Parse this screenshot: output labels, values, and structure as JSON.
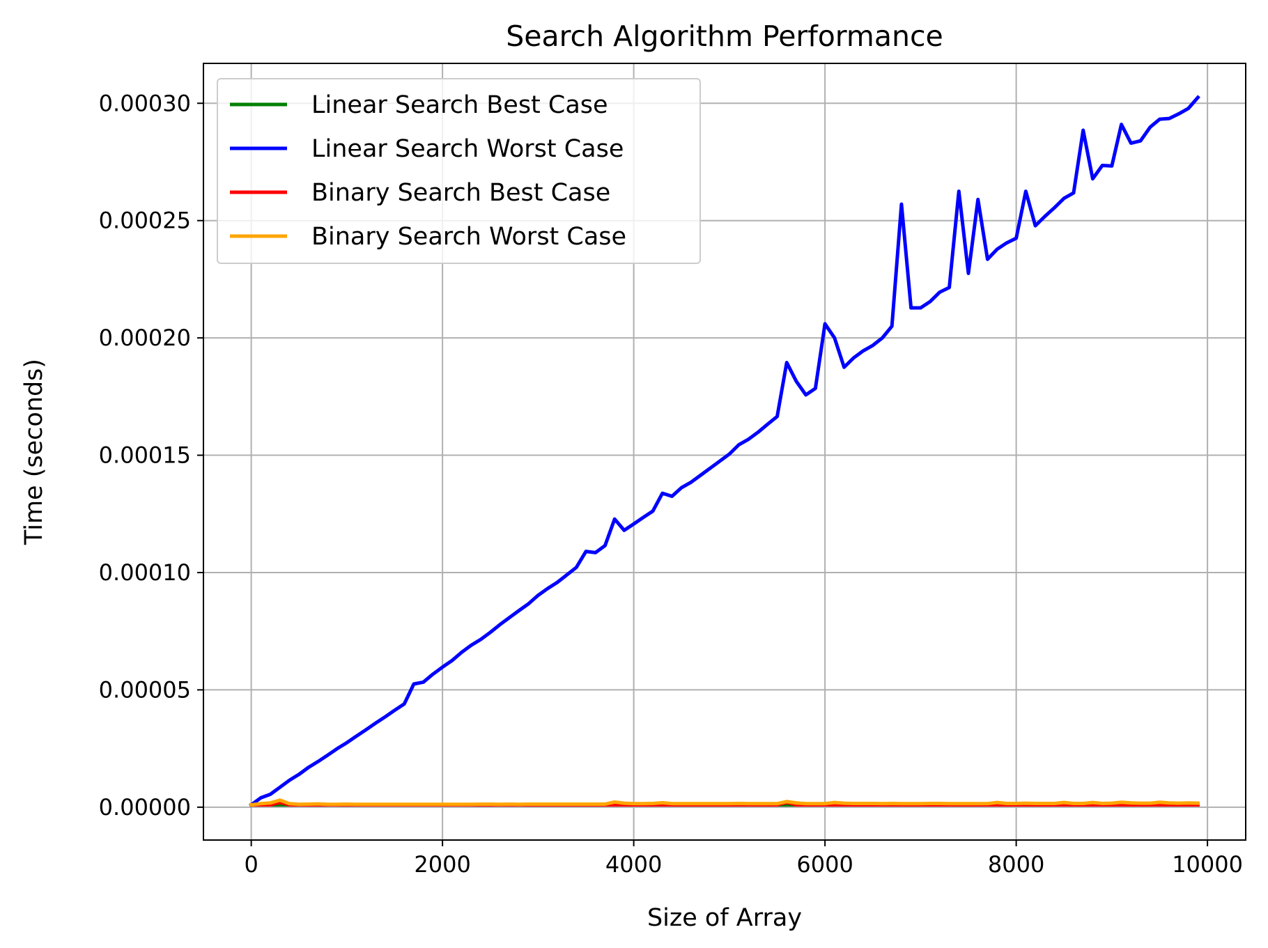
{
  "chart_data": {
    "type": "line",
    "title": "Search Algorithm Performance",
    "xlabel": "Size of Array",
    "ylabel": "Time (seconds)",
    "xlim": [
      -500,
      10400
    ],
    "ylim": [
      -1.4e-05,
      0.000317
    ],
    "xticks": [
      0,
      2000,
      4000,
      6000,
      8000,
      10000
    ],
    "xtick_labels": [
      "0",
      "2000",
      "4000",
      "6000",
      "8000",
      "10000"
    ],
    "yticks": [
      0,
      5e-05,
      0.0001,
      0.00015,
      0.0002,
      0.00025,
      0.0003
    ],
    "ytick_labels": [
      "0.00000",
      "0.00005",
      "0.00010",
      "0.00015",
      "0.00020",
      "0.00025",
      "0.00030"
    ],
    "grid": true,
    "legend_position": "upper-left",
    "x": [
      0,
      100,
      200,
      300,
      400,
      500,
      600,
      700,
      800,
      900,
      1000,
      1100,
      1200,
      1300,
      1400,
      1500,
      1600,
      1700,
      1800,
      1900,
      2000,
      2100,
      2200,
      2300,
      2400,
      2500,
      2600,
      2700,
      2800,
      2900,
      3000,
      3100,
      3200,
      3300,
      3400,
      3500,
      3600,
      3700,
      3800,
      3900,
      4000,
      4100,
      4200,
      4300,
      4400,
      4500,
      4600,
      4700,
      4800,
      4900,
      5000,
      5100,
      5200,
      5300,
      5400,
      5500,
      5600,
      5700,
      5800,
      5900,
      6000,
      6100,
      6200,
      6300,
      6400,
      6500,
      6600,
      6700,
      6800,
      6900,
      7000,
      7100,
      7200,
      7300,
      7400,
      7500,
      7600,
      7700,
      7800,
      7900,
      8000,
      8100,
      8200,
      8300,
      8400,
      8500,
      8600,
      8700,
      8800,
      8900,
      9000,
      9100,
      9200,
      9300,
      9400,
      9500,
      9600,
      9700,
      9800,
      9900
    ],
    "series": [
      {
        "name": "Linear Search Best Case",
        "color": "#008000",
        "values": [
          1e-06,
          1e-06,
          1e-06,
          1e-06,
          1e-06,
          1e-06,
          1e-06,
          1e-06,
          1e-06,
          1e-06,
          1e-06,
          1e-06,
          1e-06,
          1e-06,
          1e-06,
          1e-06,
          1e-06,
          1e-06,
          1e-06,
          1e-06,
          1e-06,
          1e-06,
          1e-06,
          1e-06,
          1e-06,
          1e-06,
          1e-06,
          1e-06,
          1e-06,
          1e-06,
          1e-06,
          1e-06,
          1e-06,
          1e-06,
          1e-06,
          1e-06,
          1e-06,
          1e-06,
          1e-06,
          1e-06,
          1e-06,
          1e-06,
          1e-06,
          1e-06,
          1e-06,
          1e-06,
          1e-06,
          1e-06,
          1e-06,
          1e-06,
          1e-06,
          1e-06,
          1e-06,
          1e-06,
          1e-06,
          1e-06,
          1e-06,
          1e-06,
          1e-06,
          1e-06,
          1e-06,
          1e-06,
          1e-06,
          1e-06,
          1e-06,
          1e-06,
          1e-06,
          1e-06,
          1e-06,
          1e-06,
          1e-06,
          1e-06,
          1e-06,
          1e-06,
          1e-06,
          1e-06,
          1e-06,
          1e-06,
          1e-06,
          1e-06,
          1e-06,
          1e-06,
          1e-06,
          1e-06,
          1e-06,
          1e-06,
          1e-06,
          1e-06,
          1e-06,
          1e-06,
          1e-06,
          1e-06,
          1e-06,
          1e-06,
          1e-06,
          1e-06,
          1e-06,
          1e-06,
          1e-06,
          1e-06
        ]
      },
      {
        "name": "Linear Search Worst Case",
        "color": "#0000ff",
        "values": [
          1e-06,
          4e-06,
          5.5e-06,
          8.5e-06,
          1.15e-05,
          1.4e-05,
          1.7e-05,
          1.95e-05,
          2.22e-05,
          2.5e-05,
          2.75e-05,
          3.03e-05,
          3.3e-05,
          3.58e-05,
          3.85e-05,
          4.13e-05,
          4.4e-05,
          5.25e-05,
          5.33e-05,
          5.67e-05,
          5.97e-05,
          6.25e-05,
          6.6e-05,
          6.9e-05,
          7.15e-05,
          7.45e-05,
          7.78e-05,
          8.08e-05,
          8.38e-05,
          8.67e-05,
          9.03e-05,
          9.32e-05,
          9.58e-05,
          9.9e-05,
          0.0001022,
          0.000109,
          0.0001085,
          0.0001115,
          0.0001228,
          0.000118,
          0.0001207,
          0.0001235,
          0.0001262,
          0.0001338,
          0.0001325,
          0.0001362,
          0.0001385,
          0.0001415,
          0.0001445,
          0.0001475,
          0.0001505,
          0.0001545,
          0.0001568,
          0.0001598,
          0.0001632,
          0.0001665,
          0.0001895,
          0.0001815,
          0.0001757,
          0.0001785,
          0.000206,
          0.0002,
          0.0001875,
          0.0001915,
          0.0001945,
          0.0001968,
          0.0002,
          0.000205,
          0.000257,
          0.0002128,
          0.0002128,
          0.0002155,
          0.0002195,
          0.0002215,
          0.0002625,
          0.0002275,
          0.000259,
          0.0002335,
          0.0002378,
          0.0002405,
          0.0002425,
          0.0002625,
          0.0002478,
          0.0002518,
          0.0002555,
          0.0002595,
          0.0002618,
          0.0002885,
          0.0002678,
          0.0002735,
          0.0002733,
          0.000291,
          0.000283,
          0.000284,
          0.0002898,
          0.0002932,
          0.0002935,
          0.0002955,
          0.0002978,
          0.0003025
        ]
      },
      {
        "name": "Binary Search Best Case",
        "color": "#ff0000",
        "values": [
          1e-06,
          1e-06,
          1e-06,
          2e-06,
          1e-06,
          1e-06,
          1e-06,
          1e-06,
          1e-06,
          1e-06,
          1e-06,
          1e-06,
          1e-06,
          1e-06,
          1e-06,
          1e-06,
          1e-06,
          1e-06,
          1e-06,
          1e-06,
          1e-06,
          1e-06,
          1e-06,
          1e-06,
          1e-06,
          1e-06,
          1e-06,
          1e-06,
          1e-06,
          1e-06,
          1e-06,
          1e-06,
          1e-06,
          1e-06,
          1e-06,
          1e-06,
          1e-06,
          1e-06,
          1e-06,
          1e-06,
          1e-06,
          1e-06,
          1e-06,
          1e-06,
          1e-06,
          1e-06,
          1e-06,
          1e-06,
          1e-06,
          1e-06,
          1e-06,
          1e-06,
          1e-06,
          1e-06,
          1e-06,
          1e-06,
          2e-06,
          1e-06,
          1e-06,
          1e-06,
          1e-06,
          1e-06,
          1e-06,
          1e-06,
          1e-06,
          1e-06,
          1e-06,
          1e-06,
          1e-06,
          1e-06,
          1e-06,
          1e-06,
          1e-06,
          1e-06,
          1e-06,
          1e-06,
          1e-06,
          1e-06,
          1e-06,
          1e-06,
          1e-06,
          1e-06,
          1e-06,
          1e-06,
          1e-06,
          1e-06,
          1e-06,
          1e-06,
          1e-06,
          1e-06,
          1e-06,
          1e-06,
          1e-06,
          1e-06,
          1e-06,
          1e-06,
          1e-06,
          1e-06,
          1e-06,
          1e-06
        ]
      },
      {
        "name": "Binary Search Worst Case",
        "color": "#ffa500",
        "values": [
          1e-06,
          1.5e-06,
          1.8e-06,
          3e-06,
          1.5e-06,
          1.2e-06,
          1.3e-06,
          1.4e-06,
          1.2e-06,
          1.2e-06,
          1.3e-06,
          1.2e-06,
          1.2e-06,
          1.2e-06,
          1.2e-06,
          1.2e-06,
          1.2e-06,
          1.2e-06,
          1.2e-06,
          1.2e-06,
          1.2e-06,
          1.2e-06,
          1.2e-06,
          1.2e-06,
          1.3e-06,
          1.3e-06,
          1.2e-06,
          1.3e-06,
          1.2e-06,
          1.3e-06,
          1.3e-06,
          1.3e-06,
          1.3e-06,
          1.3e-06,
          1.3e-06,
          1.3e-06,
          1.3e-06,
          1.3e-06,
          2.2e-06,
          1.7e-06,
          1.5e-06,
          1.5e-06,
          1.6e-06,
          1.9e-06,
          1.5e-06,
          1.5e-06,
          1.5e-06,
          1.5e-06,
          1.5e-06,
          1.5e-06,
          1.5e-06,
          1.6e-06,
          1.5e-06,
          1.5e-06,
          1.5e-06,
          1.5e-06,
          2.4e-06,
          1.8e-06,
          1.5e-06,
          1.5e-06,
          1.5e-06,
          2e-06,
          1.7e-06,
          1.6e-06,
          1.6e-06,
          1.6e-06,
          1.5e-06,
          1.6e-06,
          1.5e-06,
          1.5e-06,
          1.5e-06,
          1.6e-06,
          1.6e-06,
          1.5e-06,
          1.5e-06,
          1.5e-06,
          1.5e-06,
          1.5e-06,
          2e-06,
          1.6e-06,
          1.6e-06,
          1.7e-06,
          1.6e-06,
          1.6e-06,
          1.6e-06,
          2e-06,
          1.6e-06,
          1.6e-06,
          2e-06,
          1.6e-06,
          1.7e-06,
          2.1e-06,
          1.8e-06,
          1.7e-06,
          1.7e-06,
          2.1e-06,
          1.8e-06,
          1.7e-06,
          1.8e-06,
          1.7e-06
        ]
      }
    ]
  }
}
